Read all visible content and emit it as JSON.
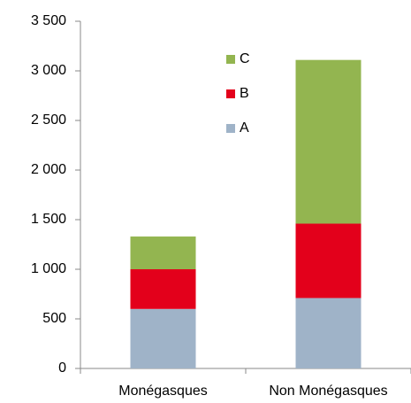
{
  "chart_data": {
    "type": "stacked_bar",
    "categories": [
      "Monégasques",
      "Non Monégasques"
    ],
    "series": [
      {
        "name": "A",
        "color": "#9fb3c8",
        "values": [
          600,
          710
        ]
      },
      {
        "name": "B",
        "color": "#e3001b",
        "values": [
          400,
          750
        ]
      },
      {
        "name": "C",
        "color": "#93b550",
        "values": [
          330,
          1650
        ]
      }
    ],
    "ylim": [
      0,
      3500
    ],
    "yticks": [
      0,
      500,
      {
        "value": 1000,
        "label": "1 000"
      },
      {
        "value": 1500,
        "label": "1 500"
      },
      {
        "value": 2000,
        "label": "2 000"
      },
      {
        "value": 2500,
        "label": "2 500"
      },
      {
        "value": 3000,
        "label": "3 000"
      },
      {
        "value": 3500,
        "label": "3 500"
      }
    ],
    "grid": false
  }
}
